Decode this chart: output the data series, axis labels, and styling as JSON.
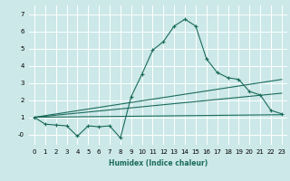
{
  "xlabel": "Humidex (Indice chaleur)",
  "xlim": [
    -0.5,
    23.5
  ],
  "ylim": [
    -0.6,
    7.5
  ],
  "yticks": [
    0,
    1,
    2,
    3,
    4,
    5,
    6,
    7
  ],
  "ytick_labels": [
    "-0",
    "1",
    "2",
    "3",
    "4",
    "5",
    "6",
    "7"
  ],
  "xticks": [
    0,
    1,
    2,
    3,
    4,
    5,
    6,
    7,
    8,
    9,
    10,
    11,
    12,
    13,
    14,
    15,
    16,
    17,
    18,
    19,
    20,
    21,
    22,
    23
  ],
  "bg_color": "#cce8e8",
  "line_color": "#1a6b5a",
  "grid_color": "#ffffff",
  "main_line": {
    "x": [
      0,
      1,
      2,
      3,
      4,
      5,
      6,
      7,
      8,
      9,
      10,
      11,
      12,
      13,
      14,
      15,
      16,
      17,
      18,
      19,
      20,
      21,
      22,
      23
    ],
    "y": [
      1.0,
      0.6,
      0.55,
      0.5,
      -0.1,
      0.5,
      0.45,
      0.5,
      -0.2,
      2.2,
      3.5,
      4.9,
      5.4,
      6.3,
      6.7,
      6.3,
      4.4,
      3.6,
      3.3,
      3.2,
      2.5,
      2.3,
      1.4,
      1.2
    ]
  },
  "trend_lines": [
    {
      "x": [
        0,
        23
      ],
      "y": [
        1.0,
        1.15
      ]
    },
    {
      "x": [
        0,
        23
      ],
      "y": [
        1.0,
        3.2
      ]
    },
    {
      "x": [
        0,
        23
      ],
      "y": [
        1.0,
        2.4
      ]
    }
  ],
  "xlabel_fontsize": 5.5,
  "xlabel_fontweight": "bold",
  "tick_fontsize": 5.0,
  "linewidth": 0.8,
  "marker_size": 3.0
}
